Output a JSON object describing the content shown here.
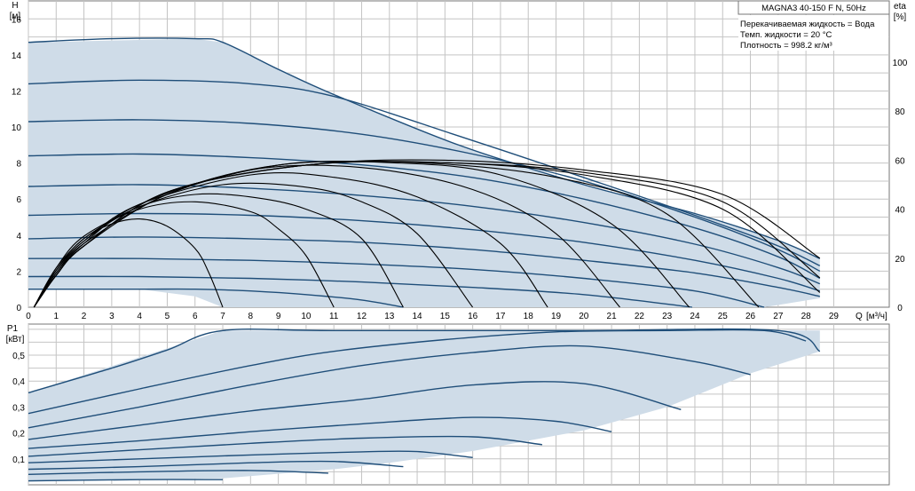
{
  "pump_title": "MAGNA3 40-150 F N, 50Hz",
  "fluid_info": [
    "Перекачиваемая жидкость = Вода",
    "Темп. жидкости = 20 °C",
    "Плотность = 998.2 кг/м³"
  ],
  "colors": {
    "area_fill": "#cfdce8",
    "curve": "#1f4e79",
    "eff_curve": "#000000",
    "grid": "#c4c4c4"
  },
  "chart_data": [
    {
      "type": "line",
      "panel": "head",
      "ylabel": "H",
      "yunit": "[м]",
      "xlabel": "Q",
      "xunit": "[м³/ч]",
      "y2label": "eta",
      "y2unit": "[%]",
      "xlim": [
        0,
        31
      ],
      "ylim": [
        0,
        17
      ],
      "y2lim": [
        0,
        125
      ],
      "x_ticks": [
        0,
        1,
        2,
        3,
        4,
        5,
        6,
        7,
        8,
        9,
        10,
        11,
        12,
        13,
        14,
        15,
        16,
        17,
        18,
        19,
        20,
        21,
        22,
        23,
        24,
        25,
        26,
        27,
        28,
        29
      ],
      "y_ticks": [
        0,
        2,
        4,
        6,
        8,
        10,
        12,
        14,
        16
      ],
      "y2_ticks": [
        0,
        20,
        40,
        60,
        80,
        100
      ],
      "grid": true,
      "operating_area": {
        "x": [
          0,
          6,
          7,
          11,
          15.5,
          20,
          24,
          27,
          28.5,
          28.5,
          26.5,
          24,
          21.5,
          19,
          16.5,
          13.5,
          11,
          7,
          6,
          4,
          0
        ],
        "y": [
          14.7,
          14.9,
          14.7,
          11.8,
          9.0,
          6.8,
          5.2,
          3.7,
          2.7,
          0.5,
          0,
          0,
          0,
          0,
          0,
          0,
          0,
          0,
          0.6,
          1.0,
          1.0
        ]
      },
      "head_curves": [
        {
          "x": [
            0,
            3,
            6,
            7,
            9,
            11,
            15.5,
            20,
            24,
            27,
            28.5
          ],
          "y": [
            14.7,
            14.9,
            14.9,
            14.7,
            13.2,
            11.8,
            9.0,
            6.8,
            5.2,
            3.7,
            2.7
          ]
        },
        {
          "x": [
            0,
            4,
            8,
            11,
            15.5,
            20,
            24,
            27,
            28.5
          ],
          "y": [
            12.4,
            12.6,
            12.4,
            11.7,
            9.5,
            7.2,
            5.1,
            3.4,
            2.3
          ]
        },
        {
          "x": [
            0,
            4,
            8,
            12,
            16,
            20,
            24,
            27,
            28.5
          ],
          "y": [
            10.3,
            10.4,
            10.2,
            9.6,
            8.5,
            7.0,
            5.0,
            3.2,
            2.0
          ]
        },
        {
          "x": [
            0,
            4,
            8,
            12,
            16,
            20,
            24,
            27,
            28.5
          ],
          "y": [
            8.4,
            8.5,
            8.3,
            7.9,
            7.2,
            6.0,
            4.4,
            2.8,
            1.6
          ]
        },
        {
          "x": [
            0,
            4,
            8,
            12,
            16,
            20,
            24,
            27,
            28.5
          ],
          "y": [
            6.7,
            6.8,
            6.6,
            6.2,
            5.6,
            4.7,
            3.5,
            2.2,
            1.3
          ]
        },
        {
          "x": [
            0,
            4,
            8,
            12,
            16,
            20,
            24,
            27,
            28.5
          ],
          "y": [
            5.1,
            5.2,
            5.1,
            4.8,
            4.3,
            3.6,
            2.6,
            1.6,
            0.9
          ]
        },
        {
          "x": [
            0,
            4,
            8,
            12,
            16,
            20,
            24,
            27,
            28.5
          ],
          "y": [
            3.8,
            3.9,
            3.8,
            3.6,
            3.2,
            2.6,
            1.9,
            1.1,
            0.6
          ]
        },
        {
          "x": [
            0,
            4,
            8,
            12,
            16,
            20,
            24,
            26.5
          ],
          "y": [
            2.7,
            2.7,
            2.6,
            2.4,
            2.1,
            1.6,
            0.9,
            0
          ]
        },
        {
          "x": [
            0,
            4,
            8,
            12,
            16,
            20,
            23.9
          ],
          "y": [
            1.7,
            1.7,
            1.6,
            1.4,
            1.1,
            0.7,
            0
          ]
        },
        {
          "x": [
            0,
            4,
            6,
            8,
            10,
            12,
            13.5
          ],
          "y": [
            1.0,
            1.0,
            1.0,
            0.9,
            0.7,
            0.4,
            0
          ]
        }
      ],
      "efficiency_curves": [
        {
          "x": [
            0.2,
            1,
            2,
            3,
            4,
            5,
            6,
            6.5,
            7
          ],
          "eta": [
            0,
            16,
            28,
            34,
            36,
            33,
            24,
            14,
            0
          ]
        },
        {
          "x": [
            0.2,
            1,
            2,
            4,
            6,
            8,
            9,
            10,
            11
          ],
          "eta": [
            0,
            16,
            29,
            40,
            43,
            39,
            32,
            21,
            0
          ]
        },
        {
          "x": [
            0.2,
            1,
            2,
            4,
            6,
            8,
            10,
            12,
            13.5
          ],
          "eta": [
            0,
            15,
            28,
            41,
            46,
            45,
            40,
            28,
            0
          ]
        },
        {
          "x": [
            0.2,
            1,
            2,
            4,
            7,
            10,
            12,
            14,
            16
          ],
          "eta": [
            0,
            15,
            27,
            41,
            50,
            49,
            43,
            30,
            0
          ]
        },
        {
          "x": [
            0.2,
            1,
            2,
            4,
            8,
            11,
            14,
            17,
            18.7
          ],
          "eta": [
            0,
            15,
            27,
            42,
            54,
            53,
            45,
            26,
            0
          ]
        },
        {
          "x": [
            0.2,
            1,
            2,
            4,
            8,
            12,
            16,
            19,
            21.3
          ],
          "eta": [
            0,
            14,
            26,
            42,
            56,
            57,
            48,
            30,
            0
          ]
        },
        {
          "x": [
            0.2,
            1,
            2,
            5,
            9,
            13,
            17,
            21,
            23.8
          ],
          "eta": [
            0,
            14,
            26,
            46,
            58,
            59,
            54,
            34,
            0
          ]
        },
        {
          "x": [
            0.2,
            1,
            2,
            5,
            9,
            14,
            19,
            23,
            26.3
          ],
          "eta": [
            0,
            13,
            25,
            46,
            58,
            59,
            53,
            38,
            0
          ]
        },
        {
          "x": [
            0.2,
            1,
            2,
            5,
            10,
            15,
            20,
            25,
            28.5
          ],
          "eta": [
            0,
            13,
            25,
            47,
            58,
            59,
            54,
            40,
            6
          ]
        },
        {
          "x": [
            0.2,
            1,
            2,
            5,
            10,
            15,
            20,
            25,
            28.5
          ],
          "eta": [
            0,
            13,
            25,
            47,
            58,
            59,
            55,
            43,
            12
          ]
        },
        {
          "x": [
            0.2,
            1,
            2,
            5,
            10,
            15,
            20,
            25,
            28.5
          ],
          "eta": [
            0,
            13,
            25,
            47,
            58,
            60,
            56,
            46,
            20
          ]
        }
      ]
    },
    {
      "type": "line",
      "panel": "power",
      "ylabel": "P1",
      "yunit": "[кВт]",
      "xlim": [
        0,
        31
      ],
      "ylim": [
        0,
        0.62
      ],
      "y_ticks": [
        0.1,
        0.2,
        0.3,
        0.4,
        0.5
      ],
      "y_tick_labels": [
        "0,1",
        "0,2",
        "0,3",
        "0,4",
        "0,5"
      ],
      "grid": true,
      "operating_area": {
        "x": [
          0,
          7,
          10.5,
          28.5,
          28.5,
          26,
          23,
          20,
          16,
          13,
          11,
          7,
          0
        ],
        "y": [
          0.355,
          0.595,
          0.595,
          0.595,
          0.515,
          0.43,
          0.3,
          0.21,
          0.13,
          0.085,
          0.06,
          0.025,
          0.012
        ]
      },
      "power_curves": [
        {
          "x": [
            0,
            3,
            5,
            7,
            11,
            20,
            27,
            28.5
          ],
          "y": [
            0.355,
            0.45,
            0.52,
            0.595,
            0.595,
            0.595,
            0.595,
            0.515
          ]
        },
        {
          "x": [
            0,
            4,
            8,
            11,
            15,
            19,
            23,
            26.5,
            28
          ],
          "y": [
            0.275,
            0.37,
            0.46,
            0.515,
            0.56,
            0.59,
            0.595,
            0.595,
            0.555
          ]
        },
        {
          "x": [
            0,
            4,
            8,
            12,
            16,
            20,
            24,
            26
          ],
          "y": [
            0.22,
            0.3,
            0.385,
            0.46,
            0.51,
            0.535,
            0.475,
            0.425
          ]
        },
        {
          "x": [
            0,
            4,
            8,
            12,
            16,
            20,
            23.5
          ],
          "y": [
            0.175,
            0.23,
            0.285,
            0.33,
            0.385,
            0.39,
            0.29
          ]
        },
        {
          "x": [
            0,
            4,
            8,
            12,
            16,
            19,
            21
          ],
          "y": [
            0.14,
            0.17,
            0.205,
            0.235,
            0.26,
            0.245,
            0.205
          ]
        },
        {
          "x": [
            0,
            4,
            8,
            12,
            16,
            18.5
          ],
          "y": [
            0.11,
            0.135,
            0.16,
            0.18,
            0.185,
            0.155
          ]
        },
        {
          "x": [
            0,
            4,
            8,
            12,
            14,
            16
          ],
          "y": [
            0.085,
            0.1,
            0.115,
            0.127,
            0.128,
            0.105
          ]
        },
        {
          "x": [
            0,
            4,
            8,
            11,
            13.5
          ],
          "y": [
            0.06,
            0.07,
            0.085,
            0.09,
            0.07
          ]
        },
        {
          "x": [
            0,
            4,
            8,
            10.8
          ],
          "y": [
            0.04,
            0.05,
            0.055,
            0.045
          ]
        },
        {
          "x": [
            0,
            4,
            7
          ],
          "y": [
            0.015,
            0.02,
            0.02
          ]
        }
      ]
    }
  ]
}
